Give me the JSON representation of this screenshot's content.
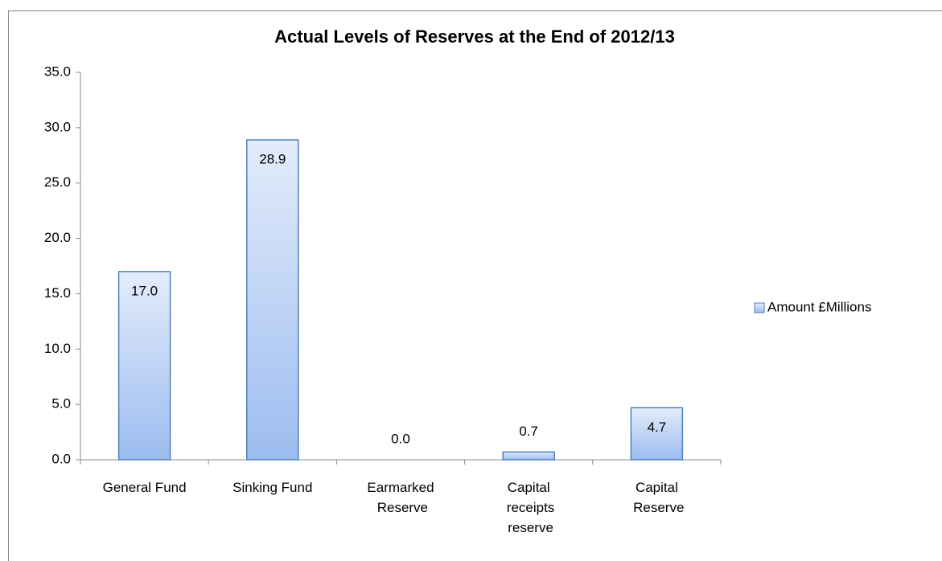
{
  "chart_data": {
    "type": "bar",
    "title": "Actual Levels of Reserves at the End of 2012/13",
    "categories": [
      "General Fund",
      "Sinking Fund",
      "Earmarked Reserve",
      "Capital receipts reserve",
      "Capital Reserve"
    ],
    "series": [
      {
        "name": "Amount £Millions",
        "color": "#4f81bd",
        "values": [
          17.0,
          28.9,
          0.0,
          0.7,
          4.7
        ],
        "value_labels": [
          "17.0",
          "28.9",
          "0.0",
          "0.7",
          "4.7"
        ]
      }
    ],
    "ylim": [
      0,
      35
    ],
    "yticks": [
      {
        "value": 0,
        "label": "0.0"
      },
      {
        "value": 5,
        "label": "5.0"
      },
      {
        "value": 10,
        "label": "10.0"
      },
      {
        "value": 15,
        "label": "15.0"
      },
      {
        "value": 20,
        "label": "20.0"
      },
      {
        "value": 25,
        "label": "25.0"
      },
      {
        "value": 30,
        "label": "30.0"
      },
      {
        "value": 35,
        "label": "35.0"
      }
    ],
    "legend": "right"
  }
}
